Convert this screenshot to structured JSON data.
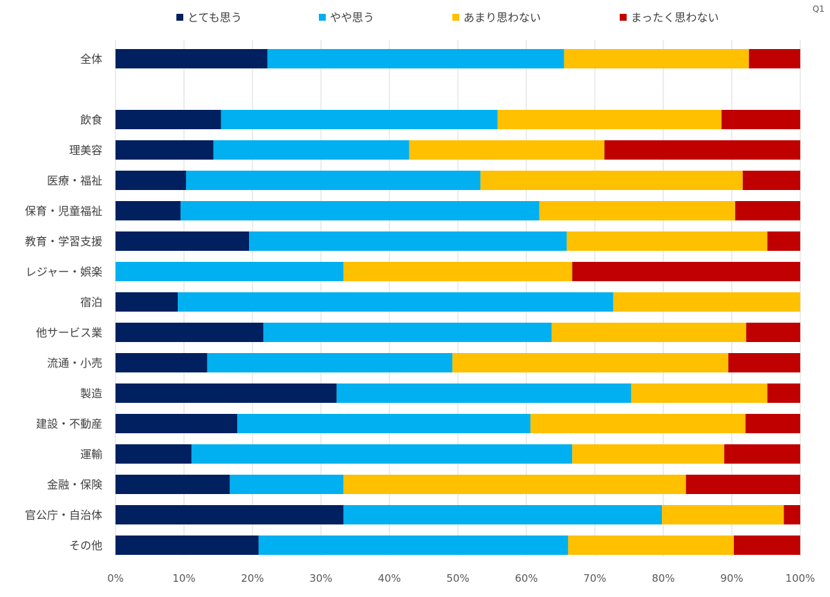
{
  "corner_label": "Q1",
  "chart_data": {
    "type": "bar",
    "orientation": "horizontal",
    "stacked": true,
    "title": "",
    "xlabel": "",
    "ylabel": "",
    "xlim": [
      0,
      100
    ],
    "x_ticks": [
      "0%",
      "10%",
      "20%",
      "30%",
      "40%",
      "50%",
      "60%",
      "70%",
      "80%",
      "90%",
      "100%"
    ],
    "grid": true,
    "legend_position": "top",
    "categories": [
      "全体",
      "",
      "飲食",
      "理美容",
      "医療・福祉",
      "保育・児童福祉",
      "教育・学習支援",
      "レジャー・娯楽",
      "宿泊",
      "他サービス業",
      "流通・小売",
      "製造",
      "建設・不動産",
      "運輸",
      "金融・保険",
      "官公庁・自治体",
      "その他"
    ],
    "series": [
      {
        "name": "とても思う",
        "color": "#002060",
        "values": [
          22.2,
          null,
          15.4,
          14.3,
          10.3,
          9.5,
          19.5,
          0,
          9.1,
          21.6,
          13.4,
          32.3,
          17.8,
          11.1,
          16.7,
          33.3,
          20.9
        ]
      },
      {
        "name": "やや思う",
        "color": "#00B0F0",
        "values": [
          43.3,
          null,
          40.4,
          28.6,
          43.0,
          52.4,
          46.4,
          33.3,
          63.6,
          42.1,
          35.8,
          43.0,
          42.8,
          55.6,
          16.6,
          46.5,
          45.2
        ]
      },
      {
        "name": "あまり思わない",
        "color": "#FFC000",
        "values": [
          27.0,
          null,
          32.7,
          28.5,
          38.3,
          28.6,
          29.3,
          33.4,
          27.3,
          28.4,
          40.3,
          19.9,
          31.4,
          22.2,
          50.0,
          17.8,
          24.2
        ]
      },
      {
        "name": "まったく思わない",
        "color": "#C00000",
        "values": [
          7.5,
          null,
          11.5,
          28.6,
          8.4,
          9.5,
          4.8,
          33.3,
          0,
          7.9,
          10.5,
          4.8,
          8.0,
          11.1,
          16.7,
          2.4,
          9.7
        ]
      }
    ]
  }
}
